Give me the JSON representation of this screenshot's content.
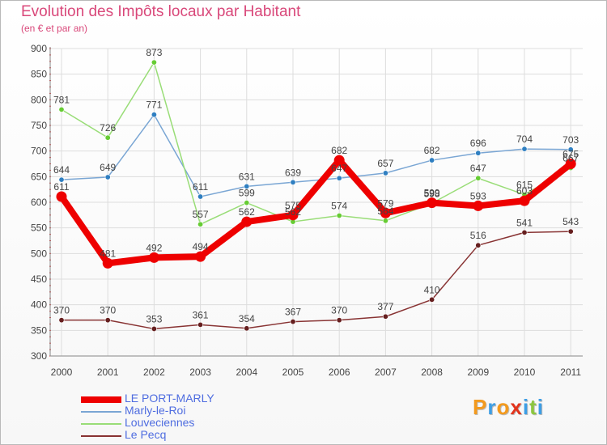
{
  "header": {
    "title": "Evolution des Impôts locaux par Habitant",
    "subtitle": "(en € et par an)"
  },
  "logo": {
    "text": "Proxiti",
    "letter_colors": [
      "#f39a1e",
      "#3d9ee5",
      "#f39a1e",
      "#e2341d",
      "#3d9ee5",
      "#8cc63f",
      "#3d9ee5"
    ]
  },
  "chart_data": {
    "type": "line",
    "x": [
      "2000",
      "2001",
      "2002",
      "2003",
      "2004",
      "2005",
      "2006",
      "2007",
      "2008",
      "2009",
      "2010",
      "2011"
    ],
    "ylim": [
      300,
      900
    ],
    "yticks": [
      300,
      350,
      400,
      450,
      500,
      550,
      600,
      650,
      700,
      750,
      800,
      850,
      900
    ],
    "grid": true,
    "legend_position": "bottom-left",
    "series": [
      {
        "name": "LE PORT-MARLY",
        "color": "#ee0000",
        "width": 8,
        "values": [
          611,
          481,
          492,
          494,
          562,
          575,
          682,
          579,
          599,
          593,
          603,
          675
        ],
        "labels": [
          "611",
          "481",
          "492",
          "494",
          "562",
          "575",
          "682",
          "579",
          "599",
          "593",
          "603",
          "675"
        ]
      },
      {
        "name": "Marly-le-Roi",
        "color": "#7aa6d4",
        "point_color": "#2f7fc1",
        "width": 1.5,
        "values": [
          644,
          649,
          771,
          611,
          631,
          639,
          647,
          657,
          682,
          696,
          704,
          703
        ],
        "labels": [
          "644",
          "649",
          "771",
          "611",
          "631",
          "639",
          "647",
          "657",
          "682",
          "696",
          "704",
          "703"
        ]
      },
      {
        "name": "Louveciennes",
        "color": "#99dd77",
        "point_color": "#66cc33",
        "width": 1.5,
        "values": [
          781,
          726,
          873,
          557,
          599,
          562,
          574,
          564,
          598,
          647,
          615,
          667
        ],
        "labels": [
          "781",
          "726",
          "873",
          "557",
          "599",
          "562",
          "574",
          "564",
          "598",
          "647",
          "615",
          "667"
        ]
      },
      {
        "name": "Le Pecq",
        "color": "#883333",
        "point_color": "#661f1f",
        "width": 1.5,
        "values": [
          370,
          370,
          353,
          361,
          354,
          367,
          370,
          377,
          410,
          516,
          541,
          543
        ],
        "labels": [
          "370",
          "370",
          "353",
          "361",
          "354",
          "367",
          "370",
          "377",
          "410",
          "516",
          "541",
          "543"
        ]
      }
    ]
  }
}
